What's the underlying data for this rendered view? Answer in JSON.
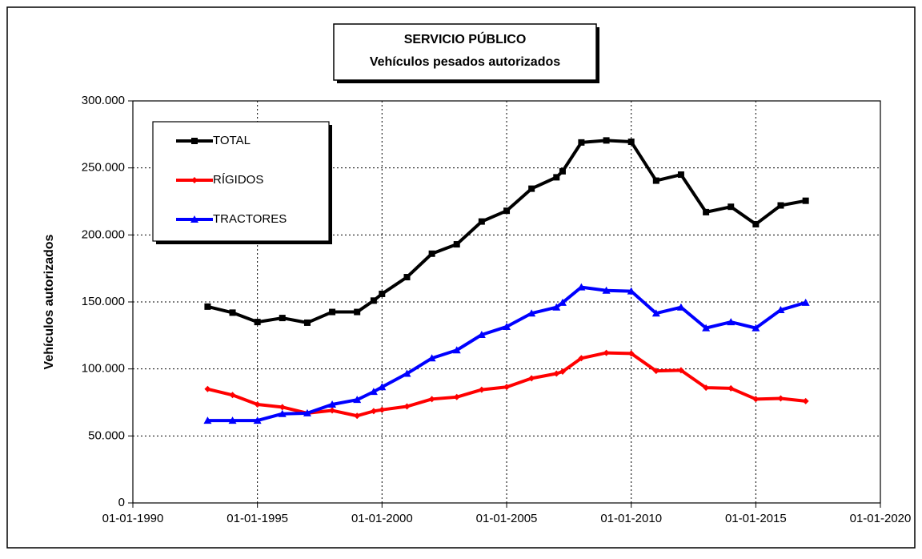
{
  "chart_data": {
    "type": "line",
    "title": "SERVICIO PÚBLICO",
    "subtitle": "Vehículos pesados autorizados",
    "ylabel": "Vehículos autorizados",
    "x": [
      "01-01-1993",
      "01-01-1994",
      "01-01-1995",
      "01-01-1996",
      "01-01-1997",
      "01-01-1998",
      "01-01-1999",
      "01-09-1999",
      "01-01-2000",
      "01-01-2001",
      "01-01-2002",
      "01-01-2003",
      "01-01-2004",
      "01-01-2005",
      "01-01-2006",
      "01-01-2007",
      "01-04-2007",
      "01-01-2008",
      "01-01-2009",
      "01-01-2010",
      "01-01-2011",
      "01-01-2012",
      "01-01-2013",
      "01-01-2014",
      "01-01-2015",
      "01-01-2016",
      "01-01-2017"
    ],
    "series": [
      {
        "name": "TOTAL",
        "color": "#000000",
        "marker": "square",
        "values": [
          146500,
          142000,
          135000,
          138000,
          134500,
          142500,
          142500,
          151000,
          156000,
          168500,
          186000,
          193000,
          210000,
          218000,
          234500,
          243000,
          247500,
          269000,
          270500,
          269500,
          240500,
          245000,
          217000,
          221000,
          208000,
          222000,
          225500
        ]
      },
      {
        "name": "RÍGIDOS",
        "color": "#ff0000",
        "marker": "diamond",
        "values": [
          85000,
          80500,
          73500,
          71500,
          67000,
          69000,
          65000,
          68500,
          69500,
          72000,
          77500,
          79000,
          84500,
          86500,
          93000,
          96500,
          98000,
          108000,
          112000,
          111500,
          98500,
          99000,
          86000,
          85500,
          77500,
          78000,
          76000
        ]
      },
      {
        "name": "TRACTORES",
        "color": "#0000ff",
        "marker": "triangle",
        "values": [
          61500,
          61500,
          61500,
          66500,
          67000,
          73500,
          77000,
          83000,
          86500,
          96500,
          108000,
          114000,
          125500,
          131500,
          141500,
          146000,
          149500,
          161000,
          158500,
          158000,
          141500,
          146000,
          130500,
          135000,
          130500,
          144000,
          149500
        ]
      }
    ],
    "xlim": [
      "01-01-1990",
      "01-01-2020"
    ],
    "xticks": [
      "01-01-1990",
      "01-01-1995",
      "01-01-2000",
      "01-01-2005",
      "01-01-2010",
      "01-01-2015",
      "01-01-2020"
    ],
    "ylim": [
      0,
      300000
    ],
    "yticks": [
      0,
      {
        "value": 50000,
        "label": "50.000"
      },
      {
        "value": 100000,
        "label": "100.000"
      },
      {
        "value": 150000,
        "label": "150.000"
      },
      {
        "value": 200000,
        "label": "200.000"
      },
      {
        "value": 250000,
        "label": "250.000"
      },
      {
        "value": 300000,
        "label": "300.000"
      }
    ],
    "grid": true,
    "legend": "upper left"
  }
}
